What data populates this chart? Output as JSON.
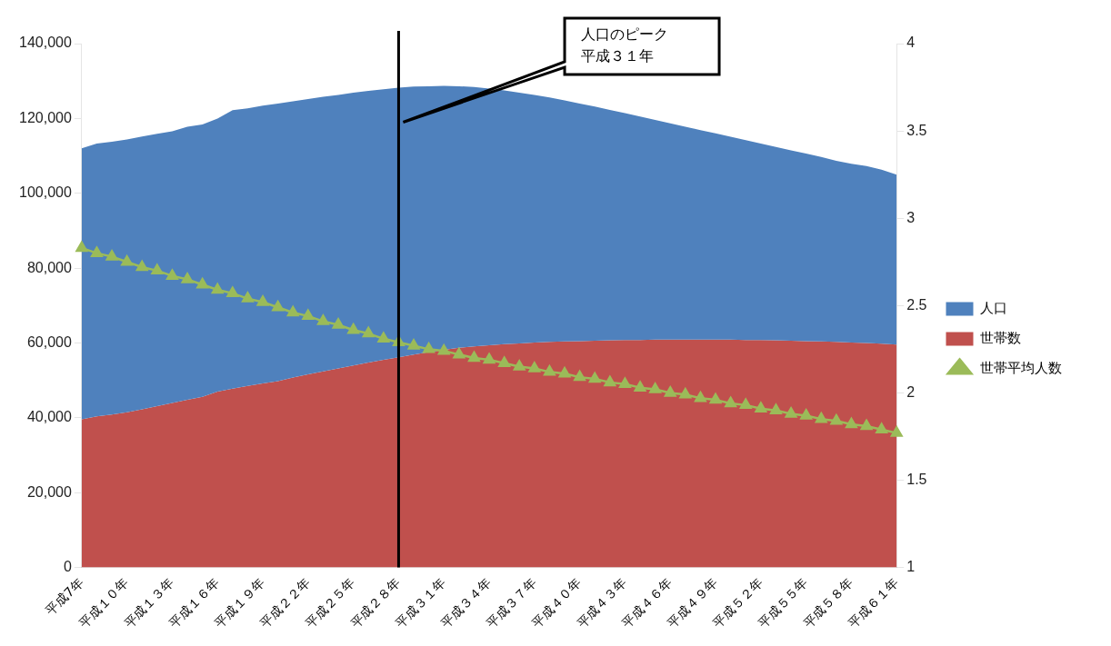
{
  "chart_data": {
    "type": "area",
    "categories": [
      "平成7年",
      null,
      null,
      "平成１０年",
      null,
      null,
      "平成１３年",
      null,
      null,
      "平成１６年",
      null,
      null,
      "平成１９年",
      null,
      null,
      "平成２２年",
      null,
      null,
      "平成２５年",
      null,
      null,
      "平成２８年",
      null,
      null,
      "平成３１年",
      null,
      null,
      "平成３４年",
      null,
      null,
      "平成３７年",
      null,
      null,
      "平成４０年",
      null,
      null,
      "平成４３年",
      null,
      null,
      "平成４６年",
      null,
      null,
      "平成４９年",
      null,
      null,
      "平成５２年",
      null,
      null,
      "平成５５年",
      null,
      null,
      "平成５８年",
      null,
      null,
      "平成６１年"
    ],
    "series": [
      {
        "name": "人口",
        "type": "area",
        "color": "#4f81bd",
        "values": [
          112000,
          113300,
          113800,
          114400,
          115200,
          115900,
          116600,
          117800,
          118400,
          120000,
          122200,
          122700,
          123400,
          124000,
          124600,
          125200,
          125800,
          126300,
          126900,
          127400,
          127800,
          128200,
          128500,
          128600,
          128700,
          128600,
          128400,
          128000,
          127500,
          126900,
          126300,
          125600,
          124800,
          124000,
          123200,
          122300,
          121400,
          120500,
          119600,
          118700,
          117800,
          116900,
          116000,
          115100,
          114200,
          113300,
          112400,
          111500,
          110600,
          109700,
          108700,
          107900,
          107300,
          106300,
          105000
        ]
      },
      {
        "name": "世帯数",
        "type": "area",
        "color": "#c0504d",
        "values": [
          39600,
          40400,
          40900,
          41500,
          42300,
          43100,
          44000,
          44800,
          45600,
          47000,
          47800,
          48500,
          49200,
          49800,
          50800,
          51600,
          52400,
          53200,
          54000,
          54800,
          55500,
          56200,
          56900,
          57600,
          58200,
          58700,
          59100,
          59400,
          59700,
          59900,
          60100,
          60300,
          60400,
          60500,
          60600,
          60700,
          60800,
          60800,
          60900,
          60900,
          60900,
          60900,
          60900,
          60900,
          60800,
          60800,
          60700,
          60600,
          60500,
          60400,
          60300,
          60100,
          60000,
          59800,
          59600
        ]
      },
      {
        "name": "世帯平均人数",
        "type": "line",
        "axis": "y2",
        "marker": "triangle",
        "color": "#9bbb59",
        "values": [
          2.83,
          2.8,
          2.78,
          2.75,
          2.72,
          2.7,
          2.67,
          2.65,
          2.62,
          2.59,
          2.57,
          2.54,
          2.52,
          2.49,
          2.46,
          2.44,
          2.41,
          2.39,
          2.36,
          2.34,
          2.31,
          2.29,
          2.27,
          2.25,
          2.24,
          2.22,
          2.2,
          2.19,
          2.17,
          2.15,
          2.14,
          2.12,
          2.11,
          2.09,
          2.08,
          2.06,
          2.05,
          2.03,
          2.02,
          2.0,
          1.99,
          1.97,
          1.96,
          1.94,
          1.93,
          1.91,
          1.9,
          1.88,
          1.87,
          1.85,
          1.84,
          1.82,
          1.81,
          1.79,
          1.77
        ]
      }
    ],
    "ylim": [
      0,
      140000
    ],
    "yticks": [
      {
        "value": 0,
        "label": "0"
      },
      {
        "value": 20000,
        "label": "20,000"
      },
      {
        "value": 40000,
        "label": "40,000"
      },
      {
        "value": 60000,
        "label": "60,000"
      },
      {
        "value": 80000,
        "label": "80,000"
      },
      {
        "value": 100000,
        "label": "100,000"
      },
      {
        "value": 120000,
        "label": "120,000"
      },
      {
        "value": 140000,
        "label": "140,000"
      }
    ],
    "y2lim": [
      1,
      4
    ],
    "y2ticks": [
      1,
      1.5,
      2,
      2.5,
      3,
      3.5,
      4
    ],
    "ref_lines": [
      {
        "axis": "x",
        "value": "平成２８年",
        "color": "#000000"
      }
    ],
    "annotations": [
      "人口のピーク",
      "平成３１年"
    ],
    "grid": false,
    "legend": "right"
  }
}
